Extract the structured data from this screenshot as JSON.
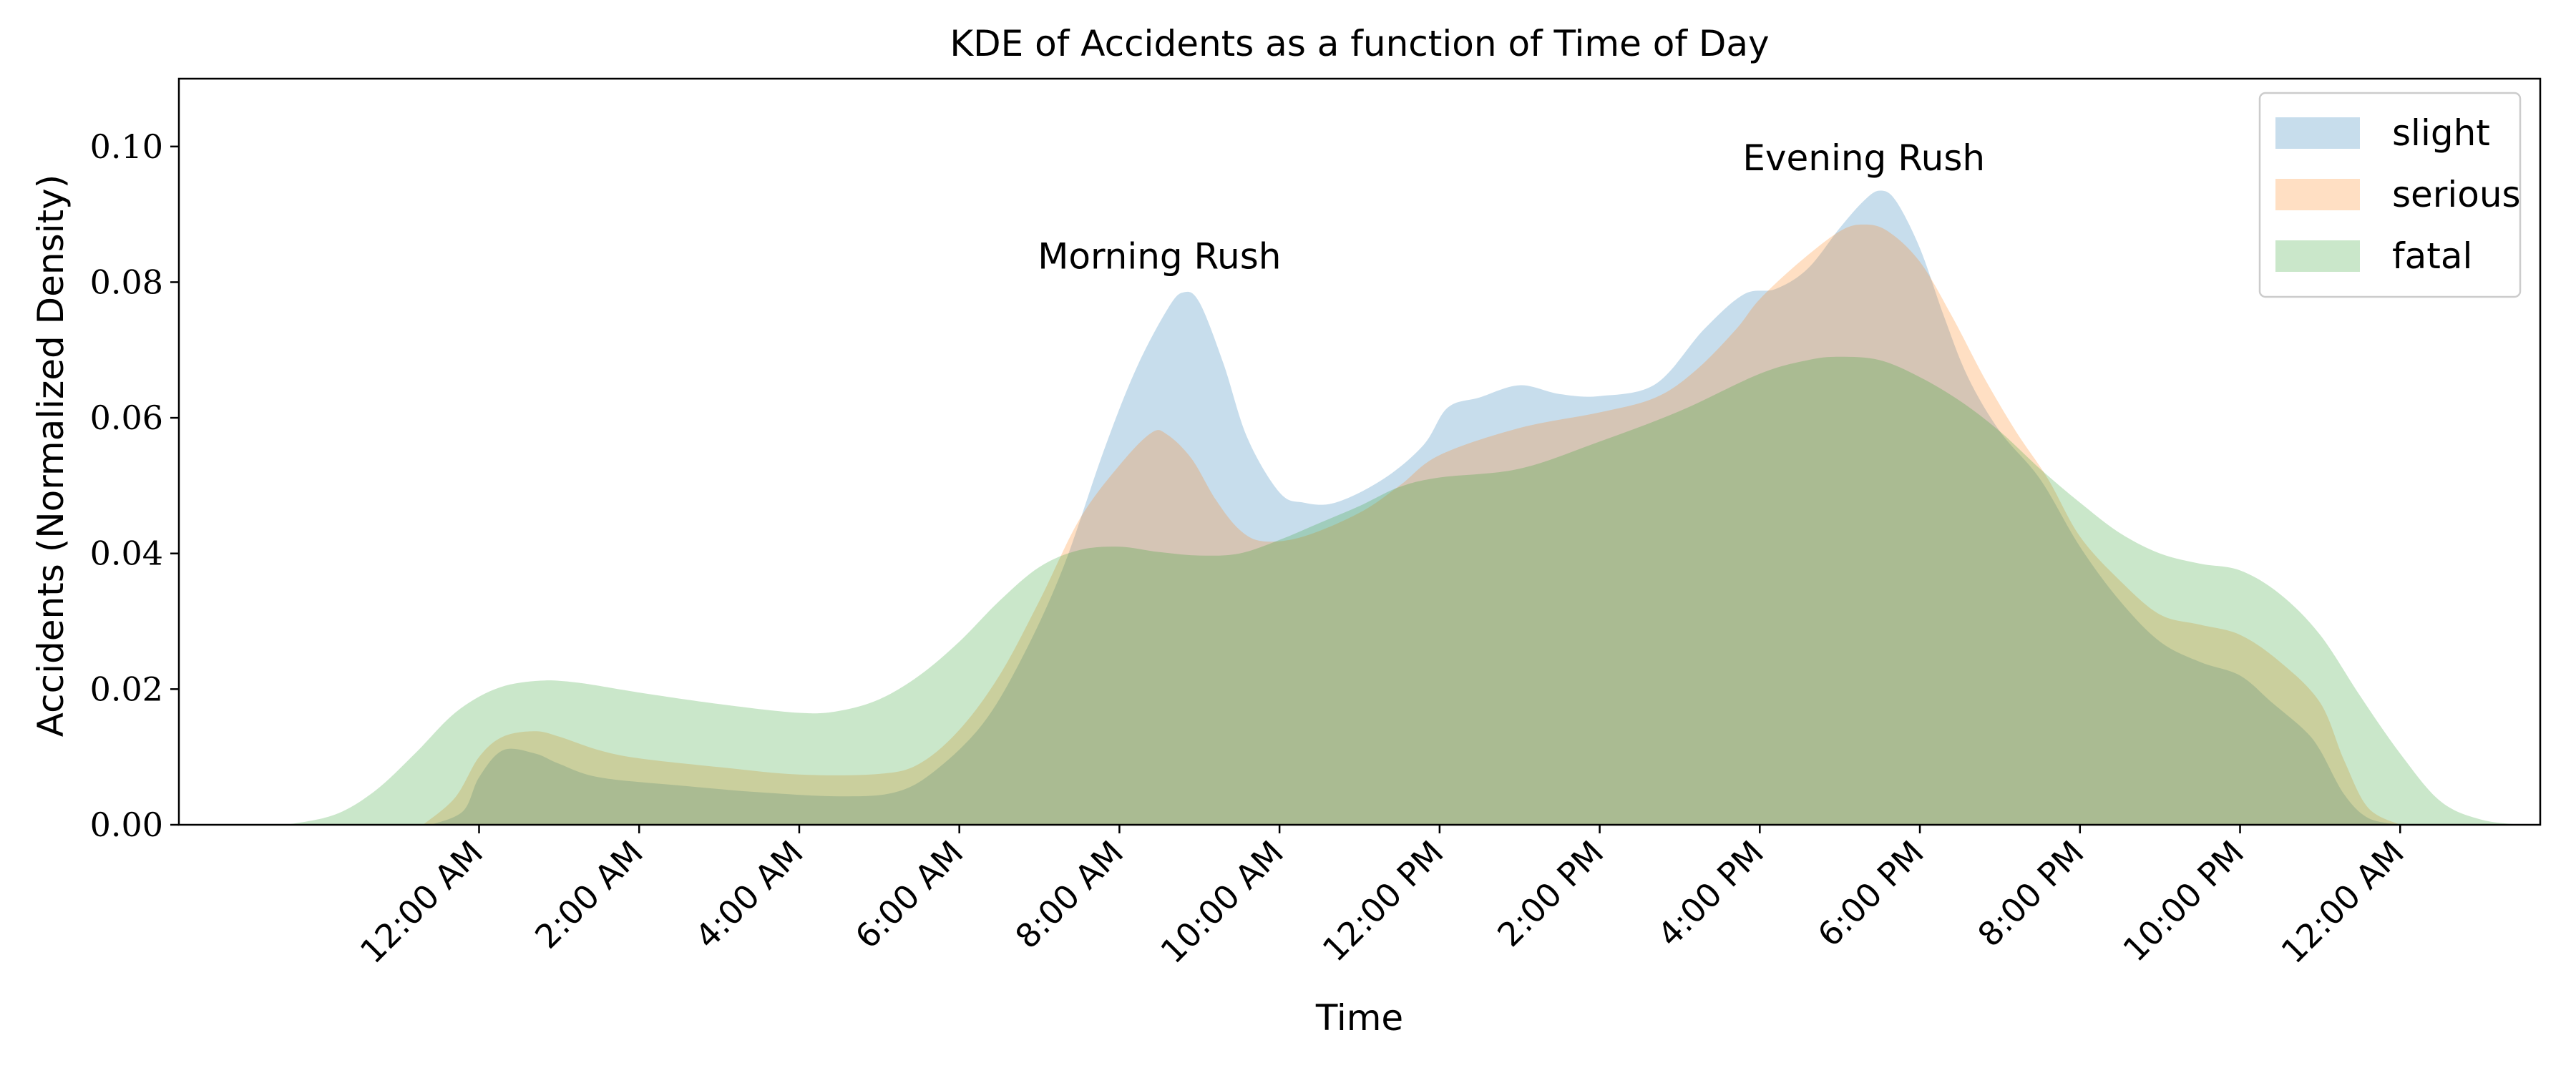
{
  "chart_data": {
    "type": "area",
    "title": "KDE of Accidents as a function of Time of Day",
    "xlabel": "Time",
    "ylabel": "Accidents (Normalized Density)",
    "xlim": [
      -3.75,
      25.75
    ],
    "ylim": [
      0,
      0.11
    ],
    "x_ticks": [
      {
        "value": 0,
        "label": "12:00 AM"
      },
      {
        "value": 2,
        "label": "2:00 AM"
      },
      {
        "value": 4,
        "label": "4:00 AM"
      },
      {
        "value": 6,
        "label": "6:00 AM"
      },
      {
        "value": 8,
        "label": "8:00 AM"
      },
      {
        "value": 10,
        "label": "10:00 AM"
      },
      {
        "value": 12,
        "label": "12:00 PM"
      },
      {
        "value": 14,
        "label": "2:00 PM"
      },
      {
        "value": 16,
        "label": "4:00 PM"
      },
      {
        "value": 18,
        "label": "6:00 PM"
      },
      {
        "value": 20,
        "label": "8:00 PM"
      },
      {
        "value": 22,
        "label": "10:00 PM"
      },
      {
        "value": 24,
        "label": "12:00 AM"
      }
    ],
    "y_ticks": [
      {
        "value": 0,
        "label": "0.00"
      },
      {
        "value": 0.02,
        "label": "0.02"
      },
      {
        "value": 0.04,
        "label": "0.04"
      },
      {
        "value": 0.06,
        "label": "0.06"
      },
      {
        "value": 0.08,
        "label": "0.08"
      },
      {
        "value": 0.1,
        "label": "0.10"
      }
    ],
    "grid": false,
    "legend_position": "top-right",
    "series": [
      {
        "name": "slight",
        "color": "#1f77b4",
        "points": [
          [
            -0.6,
            0
          ],
          [
            -0.2,
            0.002
          ],
          [
            0,
            0.007
          ],
          [
            0.3,
            0.011
          ],
          [
            0.7,
            0.0105
          ],
          [
            1,
            0.009
          ],
          [
            1.5,
            0.007
          ],
          [
            2.5,
            0.0058
          ],
          [
            3.5,
            0.0048
          ],
          [
            4.5,
            0.0042
          ],
          [
            5.2,
            0.0048
          ],
          [
            5.7,
            0.008
          ],
          [
            6.3,
            0.015
          ],
          [
            6.8,
            0.025
          ],
          [
            7.3,
            0.038
          ],
          [
            7.8,
            0.055
          ],
          [
            8.2,
            0.067
          ],
          [
            8.6,
            0.076
          ],
          [
            8.8,
            0.0785
          ],
          [
            9.0,
            0.077
          ],
          [
            9.3,
            0.068
          ],
          [
            9.6,
            0.057
          ],
          [
            10,
            0.049
          ],
          [
            10.3,
            0.0475
          ],
          [
            10.7,
            0.0475
          ],
          [
            11.3,
            0.051
          ],
          [
            11.8,
            0.056
          ],
          [
            12.1,
            0.0615
          ],
          [
            12.5,
            0.063
          ],
          [
            13,
            0.0648
          ],
          [
            13.5,
            0.0635
          ],
          [
            14,
            0.0632
          ],
          [
            14.7,
            0.065
          ],
          [
            15.3,
            0.073
          ],
          [
            15.8,
            0.0782
          ],
          [
            16.2,
            0.079
          ],
          [
            16.6,
            0.082
          ],
          [
            17,
            0.088
          ],
          [
            17.3,
            0.092
          ],
          [
            17.5,
            0.0935
          ],
          [
            17.7,
            0.092
          ],
          [
            18,
            0.085
          ],
          [
            18.3,
            0.075
          ],
          [
            18.6,
            0.066
          ],
          [
            19,
            0.058
          ],
          [
            19.5,
            0.051
          ],
          [
            20,
            0.041
          ],
          [
            20.5,
            0.033
          ],
          [
            21,
            0.027
          ],
          [
            21.5,
            0.024
          ],
          [
            22,
            0.022
          ],
          [
            22.4,
            0.018
          ],
          [
            22.8,
            0.014
          ],
          [
            23,
            0.011
          ],
          [
            23.3,
            0.0045
          ],
          [
            23.6,
            0.001
          ],
          [
            24,
            0
          ]
        ]
      },
      {
        "name": "serious",
        "color": "#ff7f0e",
        "points": [
          [
            -0.7,
            0
          ],
          [
            -0.3,
            0.004
          ],
          [
            0,
            0.01
          ],
          [
            0.3,
            0.013
          ],
          [
            0.7,
            0.0138
          ],
          [
            1,
            0.013
          ],
          [
            1.5,
            0.011
          ],
          [
            2,
            0.0098
          ],
          [
            3,
            0.0085
          ],
          [
            4,
            0.0074
          ],
          [
            5,
            0.0075
          ],
          [
            5.5,
            0.009
          ],
          [
            6,
            0.014
          ],
          [
            6.5,
            0.022
          ],
          [
            7,
            0.033
          ],
          [
            7.5,
            0.045
          ],
          [
            8,
            0.053
          ],
          [
            8.4,
            0.0578
          ],
          [
            8.6,
            0.0575
          ],
          [
            8.9,
            0.054
          ],
          [
            9.2,
            0.048
          ],
          [
            9.5,
            0.0435
          ],
          [
            9.8,
            0.0418
          ],
          [
            10.3,
            0.0425
          ],
          [
            11,
            0.046
          ],
          [
            11.5,
            0.05
          ],
          [
            12,
            0.0545
          ],
          [
            13,
            0.0585
          ],
          [
            14,
            0.0608
          ],
          [
            14.7,
            0.063
          ],
          [
            15.2,
            0.067
          ],
          [
            15.7,
            0.073
          ],
          [
            16,
            0.0775
          ],
          [
            16.5,
            0.083
          ],
          [
            17,
            0.0875
          ],
          [
            17.3,
            0.0885
          ],
          [
            17.6,
            0.0875
          ],
          [
            18,
            0.083
          ],
          [
            18.4,
            0.075
          ],
          [
            18.8,
            0.066
          ],
          [
            19.2,
            0.058
          ],
          [
            19.6,
            0.051
          ],
          [
            20,
            0.0425
          ],
          [
            20.5,
            0.036
          ],
          [
            21,
            0.031
          ],
          [
            21.5,
            0.0295
          ],
          [
            22,
            0.028
          ],
          [
            22.5,
            0.024
          ],
          [
            23,
            0.018
          ],
          [
            23.3,
            0.0095
          ],
          [
            23.6,
            0.0025
          ],
          [
            24,
            0
          ]
        ]
      },
      {
        "name": "fatal",
        "color": "#2ca02c",
        "points": [
          [
            -2.4,
            0
          ],
          [
            -1.8,
            0.0015
          ],
          [
            -1.3,
            0.005
          ],
          [
            -0.8,
            0.0105
          ],
          [
            -0.3,
            0.0165
          ],
          [
            0.2,
            0.02
          ],
          [
            0.7,
            0.0212
          ],
          [
            1.2,
            0.021
          ],
          [
            2,
            0.0195
          ],
          [
            3,
            0.0178
          ],
          [
            4,
            0.0165
          ],
          [
            4.5,
            0.0168
          ],
          [
            5,
            0.0185
          ],
          [
            5.5,
            0.022
          ],
          [
            6,
            0.027
          ],
          [
            6.5,
            0.033
          ],
          [
            7,
            0.038
          ],
          [
            7.5,
            0.0405
          ],
          [
            8,
            0.041
          ],
          [
            8.5,
            0.0402
          ],
          [
            9,
            0.0397
          ],
          [
            9.5,
            0.04
          ],
          [
            10,
            0.042
          ],
          [
            10.5,
            0.0445
          ],
          [
            11,
            0.047
          ],
          [
            11.5,
            0.0498
          ],
          [
            12,
            0.0512
          ],
          [
            13,
            0.0525
          ],
          [
            14,
            0.0565
          ],
          [
            15,
            0.061
          ],
          [
            16,
            0.0665
          ],
          [
            16.6,
            0.0685
          ],
          [
            17,
            0.069
          ],
          [
            17.5,
            0.0685
          ],
          [
            18,
            0.066
          ],
          [
            18.5,
            0.0625
          ],
          [
            19,
            0.058
          ],
          [
            19.5,
            0.0525
          ],
          [
            20,
            0.0475
          ],
          [
            20.5,
            0.043
          ],
          [
            21,
            0.04
          ],
          [
            21.5,
            0.0385
          ],
          [
            22,
            0.0375
          ],
          [
            22.5,
            0.034
          ],
          [
            23,
            0.028
          ],
          [
            23.5,
            0.019
          ],
          [
            24,
            0.0105
          ],
          [
            24.5,
            0.0035
          ],
          [
            25,
            0.0008
          ],
          [
            25.5,
            0
          ]
        ]
      }
    ],
    "annotations": [
      {
        "text": "Morning Rush",
        "x": 8.5,
        "y": 0.082
      },
      {
        "text": "Evening Rush",
        "x": 17.3,
        "y": 0.0965
      }
    ]
  }
}
